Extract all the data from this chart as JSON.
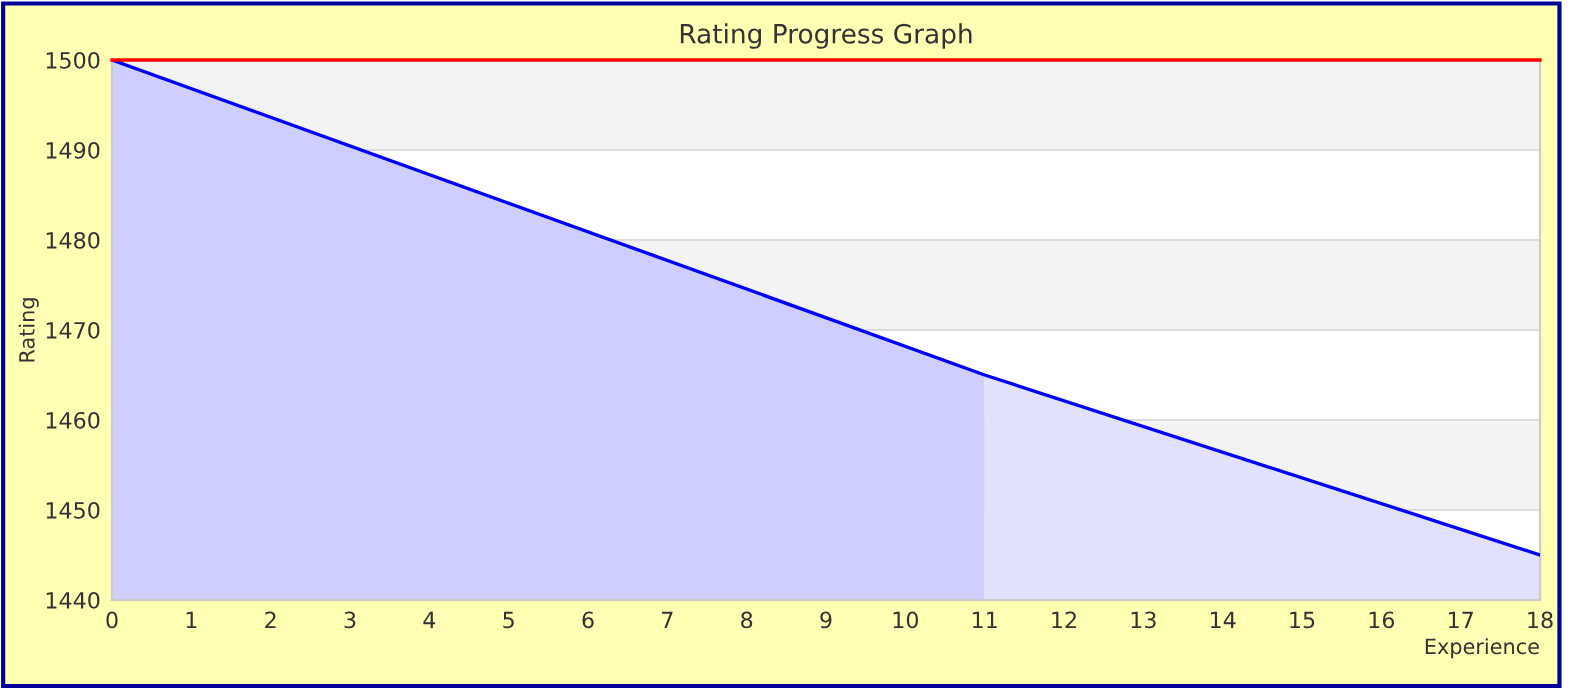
{
  "chart_data": {
    "type": "area",
    "title": "Rating Progress Graph",
    "xlabel": "Experience",
    "ylabel": "Rating",
    "series": [
      {
        "color": "#ceceff",
        "x": [
          0,
          11
        ],
        "values": [
          1500,
          1465
        ]
      },
      {
        "color": "#e1e1fc",
        "x": [
          11,
          18
        ],
        "values": [
          1465,
          1445
        ]
      },
      {
        "type": "line",
        "color": "#0000ff",
        "x": [
          0,
          11,
          18
        ],
        "values": [
          1500,
          1465,
          1445
        ]
      }
    ],
    "xlim": [
      0,
      18
    ],
    "xticks": [
      0,
      1,
      2,
      3,
      4,
      5,
      6,
      7,
      8,
      9,
      10,
      11,
      12,
      13,
      14,
      15,
      16,
      17,
      18
    ],
    "ylim": [
      1440,
      1500
    ],
    "yticks": [
      1440,
      1450,
      1460,
      1470,
      1480,
      1490,
      1500
    ],
    "ref_lines": [
      {
        "axis": "y",
        "value": 1500,
        "color": "#ff0000"
      }
    ],
    "grid": "y",
    "legend": false
  }
}
